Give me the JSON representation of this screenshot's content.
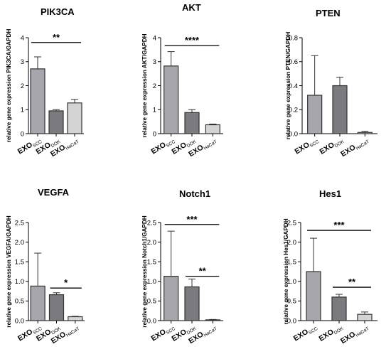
{
  "colors": {
    "bar_fills": [
      "#a6a6ac",
      "#7b7b7f",
      "#d4d4d4"
    ],
    "outline": "#333333"
  },
  "chart_data": [
    {
      "type": "bar",
      "title": "PIK3CA",
      "ylabel": "relative gene expression PIK3CA/GAPDH",
      "ylim": [
        0,
        4
      ],
      "yticks": [
        "0",
        "1",
        "2",
        "3",
        "4"
      ],
      "categories": [
        {
          "main": "EXO",
          "sub": "SCC"
        },
        {
          "main": "EXO",
          "sub": "DOK"
        },
        {
          "main": "EXO",
          "sub": "HaCaT"
        }
      ],
      "values": [
        2.7,
        0.95,
        1.28
      ],
      "errors": [
        0.5,
        0.05,
        0.15
      ],
      "significance": [
        {
          "from": 0,
          "to": 2,
          "level": 3.8,
          "label": "**"
        }
      ]
    },
    {
      "type": "bar",
      "title": "AKT",
      "ylabel": "relative gene expression AKT/GAPDH",
      "ylim": [
        0,
        4
      ],
      "yticks": [
        "0",
        "1",
        "2",
        "3",
        "4"
      ],
      "categories": [
        {
          "main": "EXO",
          "sub": "SCC"
        },
        {
          "main": "EXO",
          "sub": "DOK"
        },
        {
          "main": "EXO",
          "sub": "HaCaT"
        }
      ],
      "values": [
        2.82,
        0.88,
        0.37
      ],
      "errors": [
        0.6,
        0.12,
        0.03
      ],
      "significance": [
        {
          "from": 0,
          "to": 2,
          "level": 3.67,
          "label": "****"
        }
      ]
    },
    {
      "type": "bar",
      "title": "PTEN",
      "ylabel": "relative gene expression PTEN/GAPDH",
      "ylim": [
        0,
        0.8
      ],
      "yticks": [
        "0.0",
        "0.2",
        "0.4",
        "0.6",
        "0.8"
      ],
      "categories": [
        {
          "main": "EXO",
          "sub": "SCC"
        },
        {
          "main": "EXO",
          "sub": "DOK"
        },
        {
          "main": "EXO",
          "sub": "HaCaT"
        }
      ],
      "values": [
        0.32,
        0.4,
        0.01
      ],
      "errors": [
        0.33,
        0.07,
        0.01
      ],
      "significance": []
    },
    {
      "type": "bar",
      "title": "VEGFA",
      "ylabel": "relative gene expression VEGFA/GAPDH",
      "ylim": [
        0,
        2.5
      ],
      "yticks": [
        "0.0",
        "0.5",
        "1.0",
        "1.5",
        "2.0",
        "2.5"
      ],
      "categories": [
        {
          "main": "EXO",
          "sub": "SCC"
        },
        {
          "main": "EXO",
          "sub": "DOK"
        },
        {
          "main": "EXO",
          "sub": "HaCaT"
        }
      ],
      "values": [
        0.88,
        0.66,
        0.1
      ],
      "errors": [
        0.84,
        0.05,
        0.01
      ],
      "significance": [
        {
          "from": 1,
          "to": 2,
          "level": 0.83,
          "label": "*"
        }
      ]
    },
    {
      "type": "bar",
      "title": "Notch1",
      "ylabel": "relative gene expression Notch1/GAPDH",
      "ylim": [
        0,
        2.5
      ],
      "yticks": [
        "0.0",
        "0.5",
        "1.0",
        "1.5",
        "2.0",
        "2.5"
      ],
      "categories": [
        {
          "main": "EXO",
          "sub": "SCC"
        },
        {
          "main": "EXO",
          "sub": "DOK"
        },
        {
          "main": "EXO",
          "sub": "HaCaT"
        }
      ],
      "values": [
        1.13,
        0.86,
        0.02
      ],
      "errors": [
        1.15,
        0.2,
        0.01
      ],
      "significance": [
        {
          "from": 0,
          "to": 2,
          "level": 2.45,
          "label": "***"
        },
        {
          "from": 1,
          "to": 2,
          "level": 1.13,
          "label": "**"
        }
      ]
    },
    {
      "type": "bar",
      "title": "Hes1",
      "ylabel": "relative gene expression Hes1/GAPDH",
      "ylim": [
        0,
        2.5
      ],
      "yticks": [
        "0.0",
        "0.5",
        "1.0",
        "1.5",
        "2.0",
        "2.5"
      ],
      "categories": [
        {
          "main": "EXO",
          "sub": "SCC"
        },
        {
          "main": "EXO",
          "sub": "DOK"
        },
        {
          "main": "EXO",
          "sub": "HaCaT"
        }
      ],
      "values": [
        1.25,
        0.6,
        0.16
      ],
      "errors": [
        0.85,
        0.07,
        0.06
      ],
      "significance": [
        {
          "from": 0,
          "to": 2,
          "level": 2.3,
          "label": "***"
        },
        {
          "from": 1,
          "to": 2,
          "level": 0.85,
          "label": "**"
        }
      ]
    }
  ]
}
